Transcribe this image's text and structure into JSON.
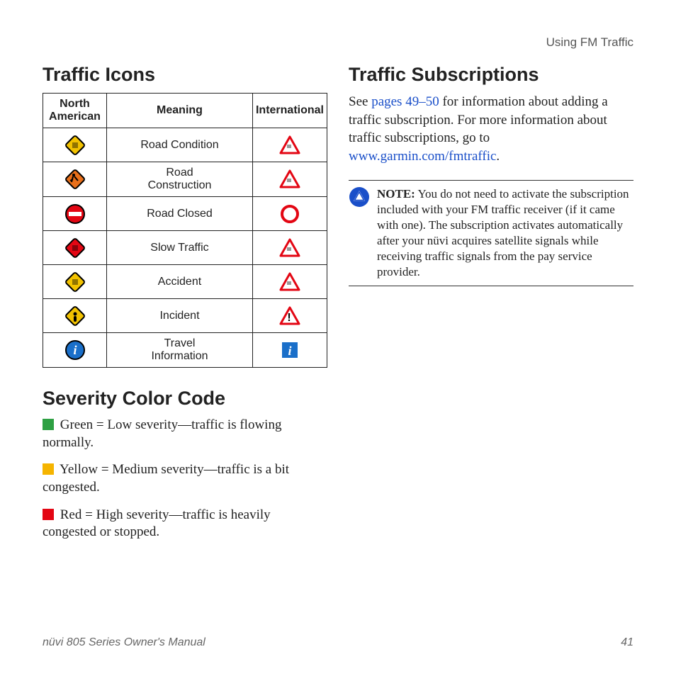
{
  "header": {
    "section": "Using FM Traffic"
  },
  "left": {
    "icons_heading": "Traffic Icons",
    "table": {
      "headers": {
        "col1": "North\nAmerican",
        "col2": "Meaning",
        "col3": "International"
      },
      "rows": [
        {
          "meaning": "Road Condition",
          "na_fill": "#f2c200",
          "na_shape": "diamond",
          "intl_stroke": "#e30613"
        },
        {
          "meaning": "Road\nConstruction",
          "na_fill": "#e86f1a",
          "na_shape": "diamond",
          "intl_stroke": "#e30613"
        },
        {
          "meaning": "Road Closed",
          "na_fill": "#e30613",
          "na_shape": "circle",
          "intl_stroke": "#e30613"
        },
        {
          "meaning": "Slow Traffic",
          "na_fill": "#e30613",
          "na_shape": "diamond",
          "intl_stroke": "#e30613"
        },
        {
          "meaning": "Accident",
          "na_fill": "#f2c200",
          "na_shape": "diamond",
          "intl_stroke": "#e30613"
        },
        {
          "meaning": "Incident",
          "na_fill": "#f2c200",
          "na_shape": "diamond",
          "intl_stroke": "#e30613"
        },
        {
          "meaning": "Travel\nInformation",
          "na_fill": "#1a6fc9",
          "na_shape": "circle",
          "intl_stroke": "#1a6fc9",
          "intl_shape": "square"
        }
      ]
    },
    "severity_heading": "Severity Color Code",
    "severity": [
      {
        "color": "#2ea043",
        "text": "Green = Low severity—traffic is flowing normally."
      },
      {
        "color": "#f5b400",
        "text": "Yellow = Medium severity—traffic is a bit congested."
      },
      {
        "color": "#e30613",
        "text": "Red = High severity—traffic is heavily congested or stopped."
      }
    ]
  },
  "right": {
    "subs_heading": "Traffic Subscriptions",
    "intro_before": "See ",
    "link1": "pages 49–50",
    "intro_mid": " for information about adding a traffic subscription. For more information about traffic subscriptions, go to ",
    "link2": "www.garmin.com/fmtraffic",
    "intro_after": ".",
    "note_label": "NOTE:",
    "note_text": " You do not need to activate the subscription included with your FM traffic receiver (if it came with one). The subscription activates automatically after your nüvi acquires satellite signals while receiving traffic signals from the pay service provider."
  },
  "footer": {
    "manual": "nüvi 805 Series Owner's Manual",
    "page": "41"
  },
  "colors": {
    "link": "#1a4fc9",
    "note_icon_bg": "#1a4fc9"
  }
}
